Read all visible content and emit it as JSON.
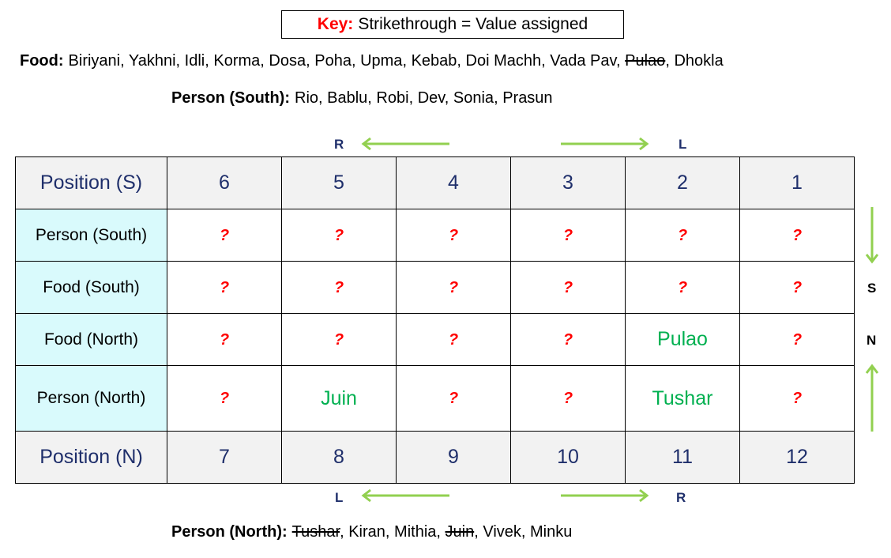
{
  "key": {
    "label": "Key:",
    "text": "Strikethrough = Value assigned"
  },
  "food_list": {
    "label": "Food:",
    "items": [
      {
        "text": "Biriyani",
        "struck": false
      },
      {
        "text": "Yakhni",
        "struck": false
      },
      {
        "text": "Idli",
        "struck": false
      },
      {
        "text": "Korma",
        "struck": false
      },
      {
        "text": "Dosa",
        "struck": false
      },
      {
        "text": "Poha",
        "struck": false
      },
      {
        "text": "Upma",
        "struck": false
      },
      {
        "text": "Kebab",
        "struck": false
      },
      {
        "text": "Doi Machh",
        "struck": false
      },
      {
        "text": "Vada Pav",
        "struck": false
      },
      {
        "text": "Pulao",
        "struck": true
      },
      {
        "text": "Dhokla",
        "struck": false
      }
    ]
  },
  "person_south_list": {
    "label": "Person (South):",
    "items": [
      {
        "text": "Rio",
        "struck": false
      },
      {
        "text": "Bablu",
        "struck": false
      },
      {
        "text": "Robi",
        "struck": false
      },
      {
        "text": "Dev",
        "struck": false
      },
      {
        "text": "Sonia",
        "struck": false
      },
      {
        "text": "Prasun",
        "struck": false
      }
    ]
  },
  "person_north_list": {
    "label": "Person (North):",
    "items": [
      {
        "text": "Tushar",
        "struck": true
      },
      {
        "text": "Kiran",
        "struck": false
      },
      {
        "text": "Mithia",
        "struck": false
      },
      {
        "text": "Juin",
        "struck": true
      },
      {
        "text": "Vivek",
        "struck": false
      },
      {
        "text": "Minku",
        "struck": false
      }
    ]
  },
  "directions": {
    "top_left": "R",
    "top_right": "L",
    "bottom_left": "L",
    "bottom_right": "R",
    "south": "S",
    "north": "N"
  },
  "unknown_marker": "?",
  "grid": {
    "rows": [
      {
        "label": "Position (S)",
        "type": "pos",
        "cells": [
          "6",
          "5",
          "4",
          "3",
          "2",
          "1"
        ]
      },
      {
        "label": "Person (South)",
        "type": "val",
        "cells": [
          null,
          null,
          null,
          null,
          null,
          null
        ]
      },
      {
        "label": "Food (South)",
        "type": "val",
        "cells": [
          null,
          null,
          null,
          null,
          null,
          null
        ]
      },
      {
        "label": "Food (North)",
        "type": "val",
        "cells": [
          null,
          null,
          null,
          null,
          "Pulao",
          null
        ]
      },
      {
        "label": "Person (North)",
        "type": "val",
        "cells": [
          null,
          "Juin",
          null,
          null,
          "Tushar",
          null
        ]
      },
      {
        "label": "Position (N)",
        "type": "pos",
        "cells": [
          "7",
          "8",
          "9",
          "10",
          "11",
          "12"
        ]
      }
    ]
  },
  "colors": {
    "assigned": "#00b050",
    "unknown": "#ff0000",
    "arrow": "#92d050",
    "header_text": "#1f2f6b",
    "label_bg": "#d9fafc",
    "header_bg": "#f2f2f2"
  }
}
